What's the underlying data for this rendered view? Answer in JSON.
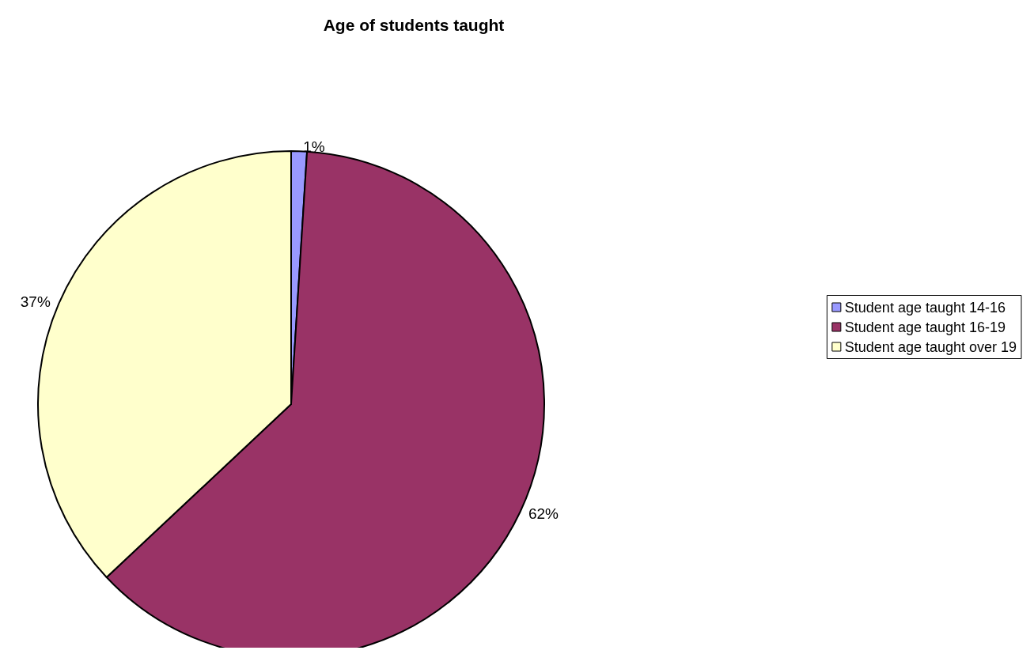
{
  "chart_data": {
    "type": "pie",
    "title": "Age of students taught",
    "categories": [
      "Student age taught 14-16",
      "Student age taught 16-19",
      "Student age taught over 19"
    ],
    "values": [
      1,
      62,
      37
    ],
    "colors": [
      "#9999ff",
      "#993366",
      "#ffffcc"
    ],
    "value_labels": [
      "1%",
      "62%",
      "37%"
    ],
    "legend": "right"
  }
}
